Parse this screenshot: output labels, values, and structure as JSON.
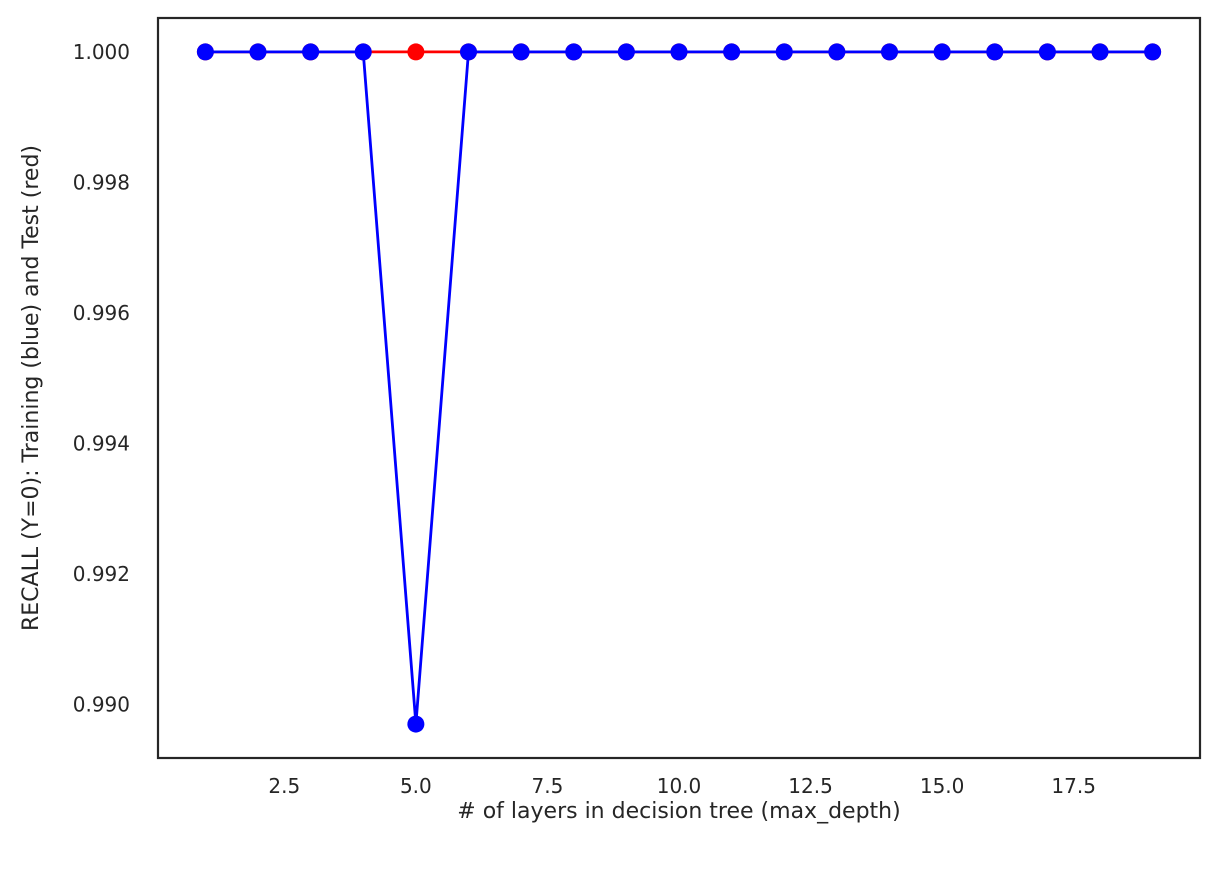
{
  "chart_data": {
    "type": "line",
    "title": "",
    "xlabel": "# of layers in decision tree (max_depth)",
    "ylabel": "RECALL (Y=0): Training (blue) and Test (red)",
    "xlim": [
      0.1,
      19.9
    ],
    "ylim": [
      0.98918,
      1.00052
    ],
    "xticks": [
      2.5,
      5.0,
      7.5,
      10.0,
      12.5,
      15.0,
      17.5
    ],
    "xtick_labels": [
      "2.5",
      "5.0",
      "7.5",
      "10.0",
      "12.5",
      "15.0",
      "17.5"
    ],
    "yticks": [
      0.99,
      0.992,
      0.994,
      0.996,
      0.998,
      1.0
    ],
    "ytick_labels": [
      "0.990",
      "0.992",
      "0.994",
      "0.996",
      "0.998",
      "1.000"
    ],
    "grid": false,
    "legend": "none",
    "x": [
      1,
      2,
      3,
      4,
      5,
      6,
      7,
      8,
      9,
      10,
      11,
      12,
      13,
      14,
      15,
      16,
      17,
      18,
      19
    ],
    "series": [
      {
        "color": "#ff0000",
        "marker": "circle",
        "values": [
          1.0,
          1.0,
          1.0,
          1.0,
          1.0,
          1.0,
          1.0,
          1.0,
          1.0,
          1.0,
          1.0,
          1.0,
          1.0,
          1.0,
          1.0,
          1.0,
          1.0,
          1.0,
          1.0
        ]
      },
      {
        "color": "#0000ff",
        "marker": "circle",
        "values": [
          1.0,
          1.0,
          1.0,
          1.0,
          0.9897,
          1.0,
          1.0,
          1.0,
          1.0,
          1.0,
          1.0,
          1.0,
          1.0,
          1.0,
          1.0,
          1.0,
          1.0,
          1.0,
          1.0
        ]
      }
    ]
  }
}
